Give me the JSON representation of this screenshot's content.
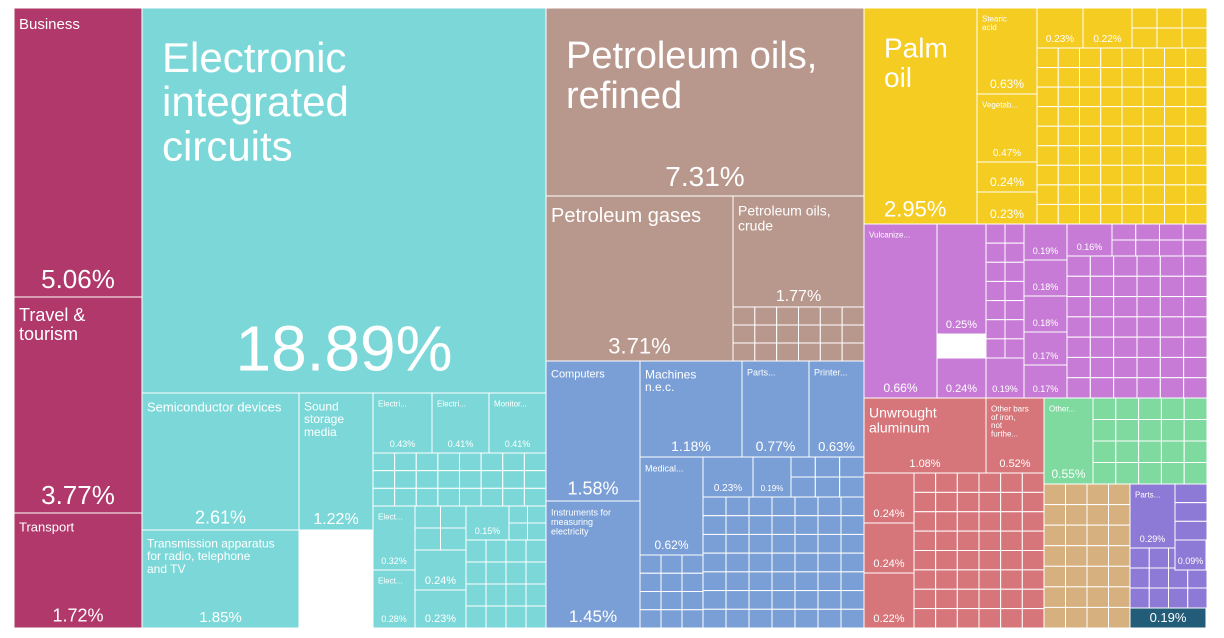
{
  "colors": {
    "services": "#B0386A",
    "electronics": "#7CD8D8",
    "minerals": "#B8978C",
    "machines": "#7A9FD6",
    "vegetable": "#F4CC22",
    "chemicals": "#C77BD6",
    "metals": "#D6757A",
    "stone": "#7FDA9F",
    "plastics": "#D7B07F",
    "instruments": "#8C7AD6",
    "misc": "#235C79"
  },
  "chart_data": {
    "type": "treemap",
    "nodes": [
      {
        "label": "Business",
        "value": "5.06%",
        "category": "services"
      },
      {
        "label": "Travel & tourism",
        "value": "3.77%",
        "category": "services"
      },
      {
        "label": "Transport",
        "value": "1.72%",
        "category": "services"
      },
      {
        "label": "Electronic integrated circuits",
        "value": "18.89%",
        "category": "electronics"
      },
      {
        "label": "Semiconductor devices",
        "value": "2.61%",
        "category": "electronics"
      },
      {
        "label": "Sound storage media",
        "value": "1.22%",
        "category": "electronics"
      },
      {
        "label": "Transmission apparatus for radio, telephone and TV",
        "value": "1.85%",
        "category": "electronics"
      },
      {
        "label": "Electri...",
        "value": "0.43%",
        "category": "electronics"
      },
      {
        "label": "Electri...",
        "value": "0.41%",
        "category": "electronics"
      },
      {
        "label": "Monitor...",
        "value": "0.41%",
        "category": "electronics"
      },
      {
        "label": "Elect...",
        "value": "0.32%",
        "category": "electronics"
      },
      {
        "label": "Elect...",
        "value": "0.28%",
        "category": "electronics"
      },
      {
        "label": "",
        "value": "0.24%",
        "category": "electronics"
      },
      {
        "label": "",
        "value": "0.23%",
        "category": "electronics"
      },
      {
        "label": "",
        "value": "0.15%",
        "category": "electronics"
      },
      {
        "label": "Petroleum oils, refined",
        "value": "7.31%",
        "category": "minerals"
      },
      {
        "label": "Petroleum gases",
        "value": "3.71%",
        "category": "minerals"
      },
      {
        "label": "Petroleum oils, crude",
        "value": "1.77%",
        "category": "minerals"
      },
      {
        "label": "Computers",
        "value": "1.58%",
        "category": "machines"
      },
      {
        "label": "Instruments for measuring electricity",
        "value": "1.45%",
        "category": "machines"
      },
      {
        "label": "Machines n.e.c.",
        "value": "1.18%",
        "category": "machines"
      },
      {
        "label": "Parts...",
        "value": "0.77%",
        "category": "machines"
      },
      {
        "label": "Printer...",
        "value": "0.63%",
        "category": "machines"
      },
      {
        "label": "Medical...",
        "value": "0.62%",
        "category": "machines"
      },
      {
        "label": "",
        "value": "0.23%",
        "category": "machines"
      },
      {
        "label": "",
        "value": "0.19%",
        "category": "machines"
      },
      {
        "label": "Palm oil",
        "value": "2.95%",
        "category": "vegetable"
      },
      {
        "label": "Stearic acid",
        "value": "0.63%",
        "category": "vegetable"
      },
      {
        "label": "Vegetab...",
        "value": "0.47%",
        "category": "vegetable"
      },
      {
        "label": "",
        "value": "0.24%",
        "category": "vegetable"
      },
      {
        "label": "",
        "value": "0.23%",
        "category": "vegetable"
      },
      {
        "label": "",
        "value": "0.23%",
        "category": "vegetable"
      },
      {
        "label": "",
        "value": "0.22%",
        "category": "vegetable"
      },
      {
        "label": "Vulcanize...",
        "value": "0.66%",
        "category": "chemicals"
      },
      {
        "label": "",
        "value": "0.25%",
        "category": "chemicals"
      },
      {
        "label": "",
        "value": "0.24%",
        "category": "chemicals"
      },
      {
        "label": "",
        "value": "0.19%",
        "category": "chemicals"
      },
      {
        "label": "",
        "value": "0.19%",
        "category": "chemicals"
      },
      {
        "label": "",
        "value": "0.18%",
        "category": "chemicals"
      },
      {
        "label": "",
        "value": "0.18%",
        "category": "chemicals"
      },
      {
        "label": "",
        "value": "0.17%",
        "category": "chemicals"
      },
      {
        "label": "",
        "value": "0.17%",
        "category": "chemicals"
      },
      {
        "label": "",
        "value": "0.16%",
        "category": "chemicals"
      },
      {
        "label": "Unwrought aluminum",
        "value": "1.08%",
        "category": "metals"
      },
      {
        "label": "Other bars of iron, not furthe...",
        "value": "0.52%",
        "category": "metals"
      },
      {
        "label": "",
        "value": "0.24%",
        "category": "metals"
      },
      {
        "label": "",
        "value": "0.24%",
        "category": "metals"
      },
      {
        "label": "",
        "value": "0.22%",
        "category": "metals"
      },
      {
        "label": "Other...",
        "value": "0.55%",
        "category": "stone"
      },
      {
        "label": "Parts...",
        "value": "0.29%",
        "category": "instruments"
      },
      {
        "label": "",
        "value": "0.09%",
        "category": "instruments"
      },
      {
        "label": "",
        "value": "0.19%",
        "category": "misc"
      }
    ]
  }
}
